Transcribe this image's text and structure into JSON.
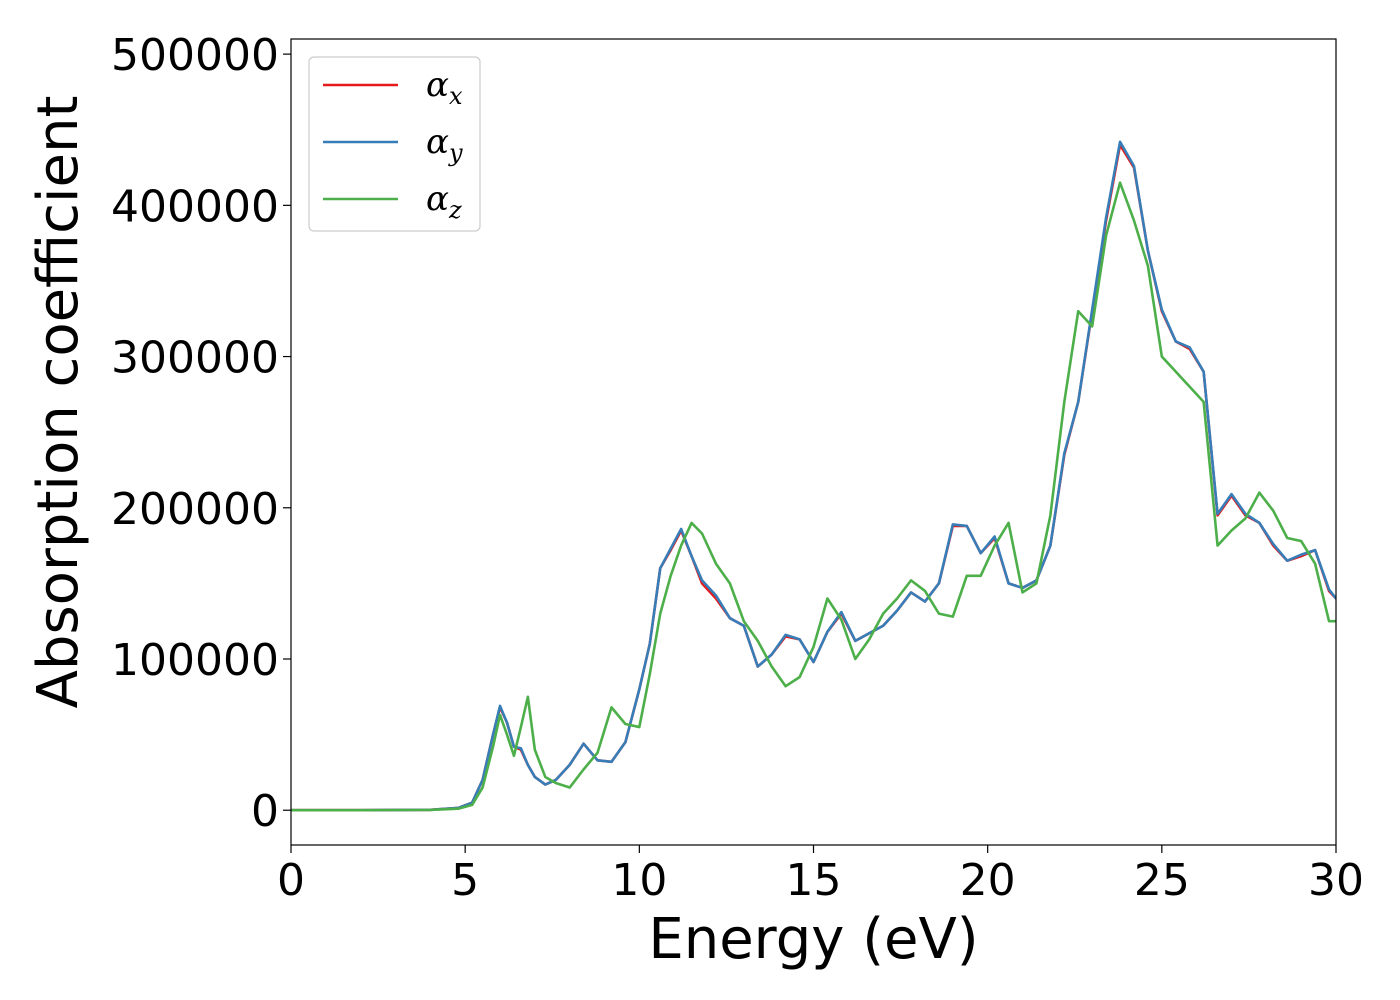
{
  "chart_data": {
    "type": "line",
    "title": "",
    "xlabel": "Energy (eV)",
    "ylabel": "Absorption coefficient",
    "xlim": [
      0,
      30
    ],
    "ylim": [
      -23000,
      510000
    ],
    "x_ticks": [
      "0",
      "5",
      "10",
      "15",
      "20",
      "25",
      "30"
    ],
    "x_tick_values": [
      0,
      5,
      10,
      15,
      20,
      25,
      30
    ],
    "y_ticks": [
      "0",
      "100000",
      "200000",
      "300000",
      "400000",
      "500000"
    ],
    "y_tick_values": [
      0,
      100000,
      200000,
      300000,
      400000,
      500000
    ],
    "grid": false,
    "legend_position": "top-left",
    "series": [
      {
        "name": "α",
        "subscript": "x",
        "color": "#e41a1c",
        "x": [
          0,
          2,
          4,
          4.8,
          5.2,
          5.5,
          5.8,
          6.0,
          6.2,
          6.4,
          6.6,
          6.8,
          7.0,
          7.3,
          7.6,
          8.0,
          8.4,
          8.8,
          9.2,
          9.6,
          10.0,
          10.3,
          10.6,
          10.9,
          11.2,
          11.5,
          11.8,
          12.2,
          12.6,
          13.0,
          13.4,
          13.8,
          14.2,
          14.6,
          15.0,
          15.4,
          15.8,
          16.2,
          16.6,
          17.0,
          17.4,
          17.8,
          18.2,
          18.6,
          19.0,
          19.4,
          19.8,
          20.2,
          20.6,
          21.0,
          21.4,
          21.8,
          22.2,
          22.6,
          23.0,
          23.4,
          23.8,
          24.2,
          24.6,
          25.0,
          25.4,
          25.8,
          26.2,
          26.6,
          27.0,
          27.4,
          27.8,
          28.2,
          28.6,
          29.0,
          29.4,
          29.8,
          30.0
        ],
        "y": [
          0,
          0,
          300,
          1500,
          5000,
          20000,
          50000,
          68000,
          58000,
          42000,
          40000,
          30000,
          22000,
          17000,
          20000,
          30000,
          44000,
          33000,
          32000,
          45000,
          80000,
          110000,
          160000,
          172000,
          185000,
          168000,
          150000,
          140000,
          127000,
          122000,
          95000,
          103000,
          115000,
          113000,
          98000,
          118000,
          130000,
          112000,
          117000,
          122000,
          132000,
          144000,
          138000,
          150000,
          188000,
          188000,
          170000,
          180000,
          150000,
          147000,
          152000,
          175000,
          235000,
          270000,
          330000,
          390000,
          440000,
          425000,
          370000,
          330000,
          310000,
          305000,
          290000,
          195000,
          208000,
          195000,
          190000,
          175000,
          165000,
          168000,
          172000,
          145000,
          140000
        ]
      },
      {
        "name": "α",
        "subscript": "y",
        "color": "#377eb8",
        "x": [
          0,
          2,
          4,
          4.8,
          5.2,
          5.5,
          5.8,
          6.0,
          6.2,
          6.4,
          6.6,
          6.8,
          7.0,
          7.3,
          7.6,
          8.0,
          8.4,
          8.8,
          9.2,
          9.6,
          10.0,
          10.3,
          10.6,
          10.9,
          11.2,
          11.5,
          11.8,
          12.2,
          12.6,
          13.0,
          13.4,
          13.8,
          14.2,
          14.6,
          15.0,
          15.4,
          15.8,
          16.2,
          16.6,
          17.0,
          17.4,
          17.8,
          18.2,
          18.6,
          19.0,
          19.4,
          19.8,
          20.2,
          20.6,
          21.0,
          21.4,
          21.8,
          22.2,
          22.6,
          23.0,
          23.4,
          23.8,
          24.2,
          24.6,
          25.0,
          25.4,
          25.8,
          26.2,
          26.6,
          27.0,
          27.4,
          27.8,
          28.2,
          28.6,
          29.0,
          29.4,
          29.8,
          30.0
        ],
        "y": [
          0,
          0,
          300,
          1500,
          5000,
          20000,
          50000,
          69000,
          58000,
          42000,
          41000,
          30000,
          22000,
          17000,
          20000,
          30000,
          44000,
          33000,
          32000,
          45000,
          80000,
          110000,
          160000,
          173000,
          186000,
          168000,
          152000,
          142000,
          127000,
          122000,
          95000,
          103000,
          116000,
          113000,
          98000,
          118000,
          131000,
          112000,
          117000,
          122000,
          132000,
          144000,
          138000,
          150000,
          189000,
          188000,
          170000,
          181000,
          150000,
          147000,
          152000,
          175000,
          236000,
          270000,
          331000,
          392000,
          442000,
          426000,
          370000,
          331000,
          310000,
          306000,
          290000,
          196000,
          209000,
          196000,
          190000,
          176000,
          165000,
          169000,
          172000,
          146000,
          140000
        ]
      },
      {
        "name": "α",
        "subscript": "z",
        "color": "#4daf4a",
        "x": [
          0,
          2,
          4,
          4.8,
          5.2,
          5.5,
          5.8,
          6.0,
          6.2,
          6.4,
          6.6,
          6.8,
          7.0,
          7.3,
          7.6,
          8.0,
          8.4,
          8.8,
          9.2,
          9.6,
          10.0,
          10.3,
          10.6,
          10.9,
          11.2,
          11.5,
          11.8,
          12.2,
          12.6,
          13.0,
          13.4,
          13.8,
          14.2,
          14.6,
          15.0,
          15.4,
          15.8,
          16.2,
          16.6,
          17.0,
          17.4,
          17.8,
          18.2,
          18.6,
          19.0,
          19.4,
          19.8,
          20.2,
          20.6,
          21.0,
          21.4,
          21.8,
          22.2,
          22.6,
          23.0,
          23.4,
          23.8,
          24.2,
          24.6,
          25.0,
          25.4,
          25.8,
          26.2,
          26.6,
          27.0,
          27.4,
          27.8,
          28.2,
          28.6,
          29.0,
          29.4,
          29.8,
          30.0
        ],
        "y": [
          0,
          0,
          200,
          1000,
          3500,
          15000,
          42000,
          63000,
          50000,
          36000,
          55000,
          75000,
          40000,
          22000,
          18000,
          15000,
          27000,
          38000,
          68000,
          57000,
          55000,
          90000,
          130000,
          155000,
          175000,
          190000,
          183000,
          163000,
          150000,
          125000,
          112000,
          95000,
          82000,
          88000,
          108000,
          140000,
          126000,
          100000,
          113000,
          130000,
          140000,
          152000,
          145000,
          130000,
          128000,
          155000,
          155000,
          175000,
          190000,
          144000,
          150000,
          195000,
          270000,
          330000,
          320000,
          380000,
          415000,
          390000,
          360000,
          300000,
          290000,
          280000,
          270000,
          175000,
          185000,
          193000,
          210000,
          198000,
          180000,
          178000,
          163000,
          125000,
          125000
        ]
      }
    ]
  }
}
